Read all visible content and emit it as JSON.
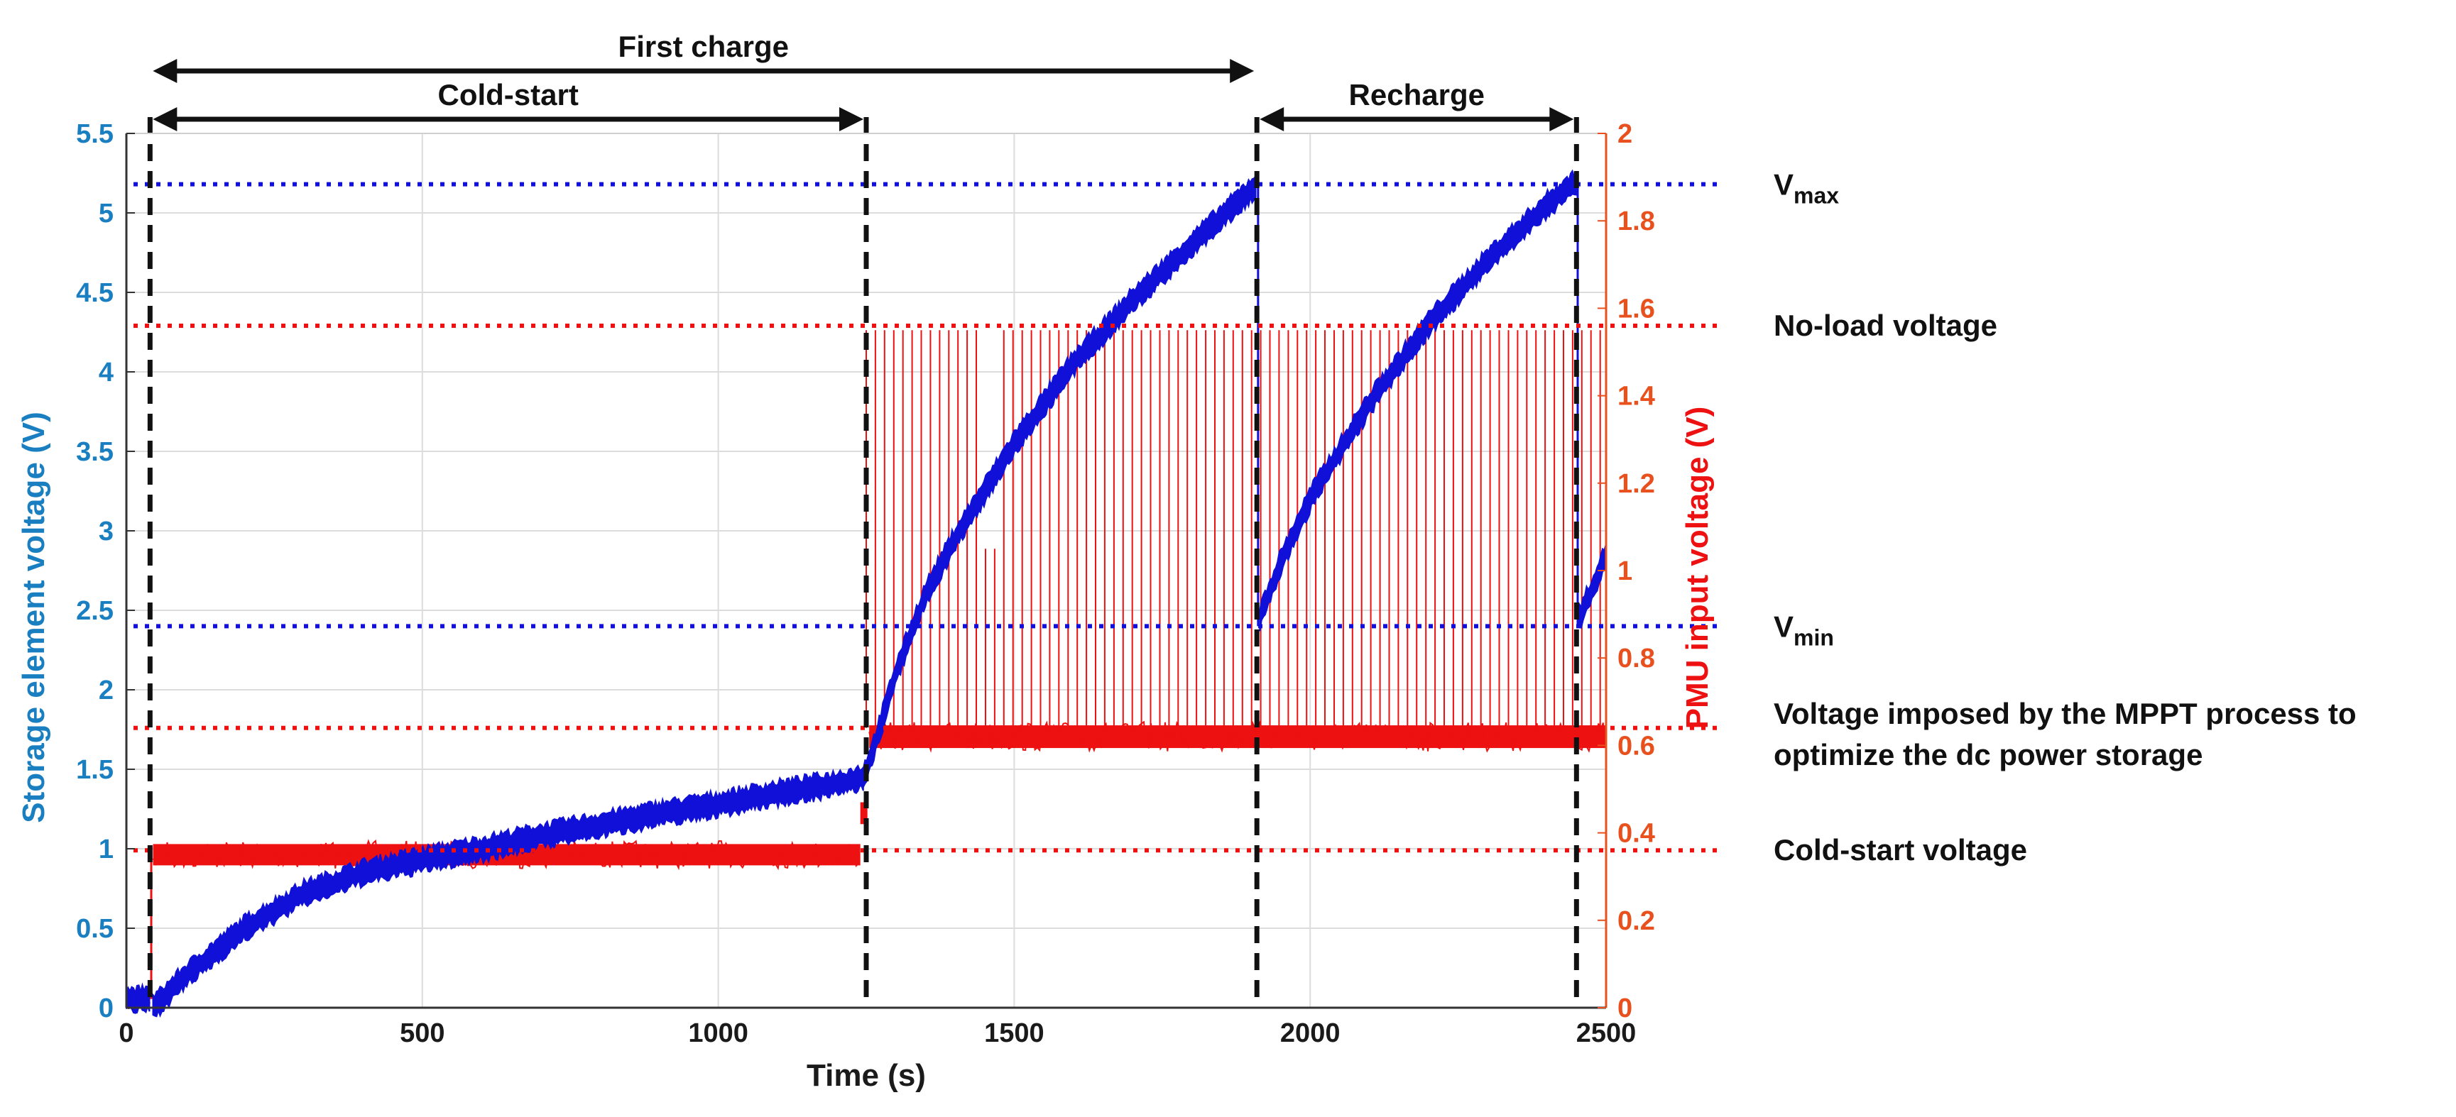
{
  "colors": {
    "left_axis": "#1a7fc1",
    "right_axis": "#e8501e",
    "blue_trace": "#1010d8",
    "red_trace": "#ee1111",
    "grid": "#dcdcdc",
    "black": "#111111"
  },
  "chart_data": {
    "type": "line",
    "title": "",
    "xlabel": "Time (s)",
    "ylabel_left": "Storage element voltage (V)",
    "ylabel_right": "PMU input voltage (V)",
    "xlim": [
      0,
      2500
    ],
    "ylim_left": [
      0,
      5.5
    ],
    "ylim_right": [
      0,
      2
    ],
    "x_ticks": [
      "0",
      "500",
      "1000",
      "1500",
      "2000",
      "2500"
    ],
    "y_left_ticks": [
      "0",
      "0.5",
      "1",
      "1.5",
      "2",
      "2.5",
      "3",
      "3.5",
      "4",
      "4.5",
      "5",
      "5.5"
    ],
    "y_right_ticks": [
      "0",
      "0.2",
      "0.4",
      "0.6",
      "0.8",
      "1",
      "1.2",
      "1.4",
      "1.6",
      "1.8",
      "2"
    ],
    "grid": true,
    "series": [
      {
        "name": "Storage element voltage (V)",
        "axis": "left",
        "x": [
          0,
          40,
          45,
          100,
          200,
          300,
          400,
          500,
          600,
          700,
          800,
          900,
          1000,
          1100,
          1200,
          1245,
          1260,
          1300,
          1350,
          1400,
          1500,
          1600,
          1700,
          1800,
          1910,
          1915,
          1950,
          2000,
          2100,
          2200,
          2300,
          2400,
          2450,
          2455,
          2500
        ],
        "y": [
          0.05,
          0.05,
          0.0,
          0.2,
          0.5,
          0.72,
          0.85,
          0.93,
          1.0,
          1.08,
          1.15,
          1.22,
          1.28,
          1.35,
          1.41,
          1.45,
          1.6,
          2.1,
          2.6,
          2.95,
          3.55,
          4.05,
          4.45,
          4.8,
          5.18,
          2.45,
          2.8,
          3.2,
          3.8,
          4.3,
          4.7,
          5.05,
          5.2,
          2.45,
          2.85
        ]
      },
      {
        "name": "PMU input voltage (V)",
        "axis": "right",
        "x": [
          0,
          40,
          45,
          1240,
          1250,
          1260,
          1910,
          2450,
          2500
        ],
        "y": [
          0.02,
          0.02,
          0.35,
          0.35,
          0.42,
          0.62,
          0.62,
          0.62,
          0.62
        ],
        "spikes_to": 1.55,
        "spike_range": [
          1250,
          2500
        ]
      }
    ],
    "reference_lines": [
      {
        "label_main": "V",
        "label_sub": "max",
        "axis": "left",
        "value": 5.18,
        "color": "blue"
      },
      {
        "label_main": "No-load voltage",
        "axis": "right",
        "value": 1.56,
        "color": "red"
      },
      {
        "label_main": "V",
        "label_sub": "min",
        "axis": "left",
        "value": 2.4,
        "color": "blue"
      },
      {
        "label_main": "Voltage imposed by the MPPT process to",
        "label_cont": "optimize the dc power storage",
        "axis": "right",
        "value": 0.64,
        "color": "red"
      },
      {
        "label_main": "Cold-start voltage",
        "axis": "right",
        "value": 0.36,
        "color": "red"
      }
    ],
    "vertical_markers": [
      40,
      1250,
      1910,
      2450
    ],
    "spans": [
      {
        "label": "First charge",
        "from": 40,
        "to": 1910
      },
      {
        "label": "Cold-start",
        "from": 40,
        "to": 1250
      },
      {
        "label": "Recharge",
        "from": 1910,
        "to": 2450
      }
    ]
  }
}
